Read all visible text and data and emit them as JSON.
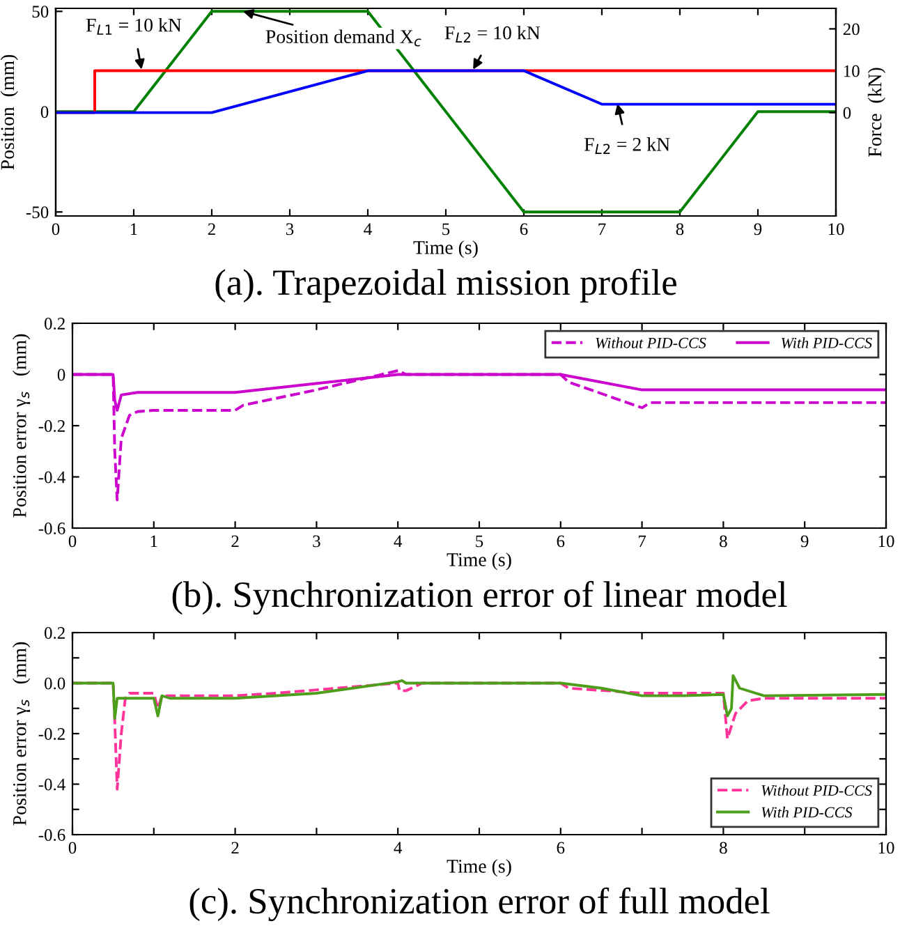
{
  "chart_data": [
    {
      "type": "line",
      "title": "(a). Trapezoidal mission profile",
      "xlabel": "Time (s)",
      "ylabel": "Position  (mm)",
      "y2label": "Force  (kN)",
      "xlim": [
        0,
        10
      ],
      "xticks": [
        0,
        1,
        2,
        3,
        4,
        5,
        6,
        7,
        8,
        9,
        10
      ],
      "ylim": [
        -52,
        51.5
      ],
      "yticks": [
        -50,
        0,
        50
      ],
      "y2lim": [
        -24.7,
        24.9
      ],
      "y2ticks": [
        0,
        10,
        20
      ],
      "series": [
        {
          "color": "#ff0000",
          "axis": "y2",
          "x": [
            0,
            0.5,
            0.5,
            10
          ],
          "values": [
            0,
            0,
            10,
            10
          ]
        },
        {
          "color": "#0000ff",
          "axis": "y2",
          "x": [
            0,
            2,
            4,
            6,
            7,
            10
          ],
          "values": [
            0,
            0,
            10,
            10,
            2,
            2
          ]
        },
        {
          "color": "#008000",
          "x": [
            0,
            1,
            2,
            4,
            6,
            8,
            9,
            10
          ],
          "values": [
            0,
            0,
            50,
            50,
            -50,
            -50,
            0,
            0
          ]
        }
      ],
      "annotations": [
        {
          "text": "F$_{L1}$ = 10 kN",
          "x": 1.1,
          "y": 21
        },
        {
          "text": "Position demand X$_{c}$",
          "x": 2.4,
          "y": 50
        },
        {
          "text": "F$_{L2}$ = 10 kN",
          "x": 5.35,
          "y": 21
        },
        {
          "text": "F$_{L2}$ = 2 kN",
          "x": 7.2,
          "y": 4
        }
      ],
      "grid": false,
      "legend": false,
      "line_style": "solid"
    },
    {
      "type": "line",
      "title": "(b). Synchronization error of linear model",
      "xlabel": "Time (s)",
      "ylabel": "Position error γ$_{s}$   (mm)",
      "xlim": [
        0,
        10
      ],
      "xticks": [
        0,
        1,
        2,
        3,
        4,
        5,
        6,
        7,
        8,
        9,
        10
      ],
      "ylim": [
        -0.6,
        0.2
      ],
      "yticks": [
        -0.6,
        -0.4,
        -0.2,
        0,
        0.2
      ],
      "series": [
        {
          "name": "Without PID-CCS",
          "color": "#cc00cc",
          "line_style": "dashed",
          "x": [
            0,
            0.5,
            0.52,
            0.55,
            0.6,
            0.7,
            0.8,
            1,
            2,
            2.1,
            3,
            4,
            4.1,
            5,
            6,
            6.1,
            7,
            7.05,
            7.1,
            10
          ],
          "values": [
            0,
            0,
            -0.3,
            -0.49,
            -0.25,
            -0.16,
            -0.145,
            -0.14,
            -0.14,
            -0.12,
            -0.06,
            0.015,
            0,
            0,
            0,
            -0.03,
            -0.13,
            -0.12,
            -0.11,
            -0.11
          ]
        },
        {
          "name": "With PID-CCS",
          "color": "#cc00cc",
          "line_style": "solid",
          "x": [
            0,
            0.5,
            0.52,
            0.55,
            0.6,
            0.8,
            2,
            4,
            6,
            7,
            10
          ],
          "values": [
            0,
            0,
            -0.1,
            -0.14,
            -0.08,
            -0.07,
            -0.07,
            0,
            0,
            -0.06,
            -0.06
          ]
        }
      ],
      "grid": false,
      "legend": "top right"
    },
    {
      "type": "line",
      "title": "(c). Synchronization error of full model",
      "xlabel": "Time (s)",
      "ylabel": "Position error γ$_{s}$   (mm)",
      "xlim": [
        0,
        10
      ],
      "xticks": [
        0,
        {
          "value": 1,
          "label": null
        },
        2,
        {
          "value": 3,
          "label": null
        },
        4,
        {
          "value": 5,
          "label": null
        },
        6,
        {
          "value": 7,
          "label": null
        },
        8,
        {
          "value": 9,
          "label": null
        },
        10
      ],
      "ylim": [
        -0.6,
        0.2
      ],
      "yticks": [
        -0.6,
        {
          "value": -0.5,
          "label": null
        },
        -0.4,
        {
          "value": -0.3,
          "label": null
        },
        -0.2,
        {
          "value": -0.1,
          "label": null
        },
        {
          "value": 0,
          "label": "0.0"
        },
        {
          "value": 0.1,
          "label": null
        },
        0.2
      ],
      "series": [
        {
          "name": "Without PID-CCS",
          "color": "#ff3399",
          "line_style": "dashed",
          "x": [
            0,
            0.5,
            0.52,
            0.55,
            0.6,
            0.65,
            0.7,
            1.0,
            1.05,
            1.1,
            2,
            2.5,
            4,
            4.02,
            4.1,
            4.3,
            6,
            6.1,
            7,
            8,
            8.05,
            8.15,
            8.3,
            8.5,
            10
          ],
          "values": [
            0,
            0,
            -0.15,
            -0.42,
            -0.2,
            -0.06,
            -0.04,
            -0.04,
            -0.1,
            -0.05,
            -0.05,
            -0.04,
            0,
            -0.03,
            -0.03,
            0,
            0,
            -0.02,
            -0.04,
            -0.04,
            -0.22,
            -0.12,
            -0.07,
            -0.06,
            -0.06
          ]
        },
        {
          "name": "With PID-CCS",
          "color": "#4d9e1a",
          "line_style": "solid",
          "x": [
            0,
            0.5,
            0.52,
            0.55,
            1.0,
            1.05,
            1.1,
            1.2,
            2,
            3,
            4,
            4.05,
            4.1,
            6,
            6.5,
            7,
            7.5,
            8,
            8.05,
            8.1,
            8.12,
            8.2,
            8.5,
            10
          ],
          "values": [
            0,
            0,
            -0.14,
            -0.06,
            -0.06,
            -0.13,
            -0.05,
            -0.06,
            -0.06,
            -0.04,
            0.005,
            0.01,
            0,
            0,
            -0.02,
            -0.05,
            -0.05,
            -0.045,
            -0.13,
            -0.1,
            0.03,
            -0.02,
            -0.05,
            -0.045
          ]
        }
      ],
      "grid": false,
      "legend": "bottom right"
    }
  ]
}
